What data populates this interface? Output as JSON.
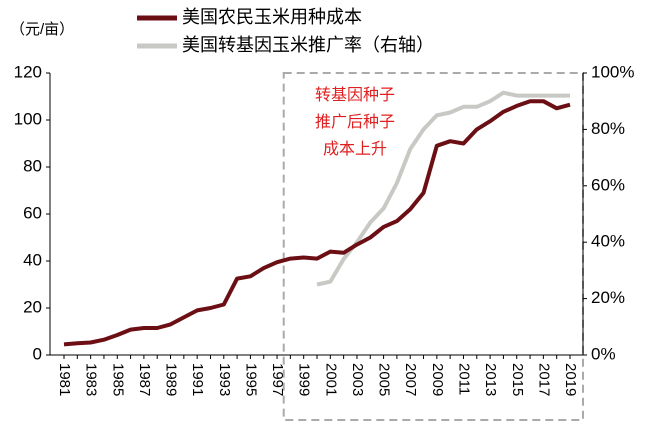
{
  "chart_data": {
    "type": "line",
    "y_label": "（元/亩）",
    "annotation": [
      "转基因种子",
      "推广后种子",
      "成本上升"
    ],
    "categories": [
      "1981",
      null,
      "1983",
      null,
      "1985",
      null,
      "1987",
      null,
      "1989",
      null,
      "1991",
      null,
      "1993",
      null,
      "1995",
      null,
      "1997",
      null,
      "1999",
      null,
      "2001",
      null,
      "2003",
      null,
      "2005",
      null,
      "2007",
      null,
      "2009",
      null,
      "2011",
      null,
      "2013",
      null,
      "2015",
      null,
      "2017",
      null,
      "2019"
    ],
    "series": [
      {
        "name": "美国农民玉米用种成本",
        "color": "#6b0f14",
        "values": [
          4.5,
          5,
          5.3,
          6.5,
          8.5,
          10.8,
          11.5,
          11.5,
          13,
          16,
          19,
          20,
          21.5,
          32.5,
          33.5,
          37,
          39.5,
          41,
          41.5,
          41,
          44,
          43.5,
          47,
          50,
          54.5,
          57,
          62,
          69,
          89,
          91,
          90,
          96,
          99.5,
          103.5,
          106,
          108,
          108,
          105,
          106.5
        ]
      },
      {
        "name": "美国转基因玉米推广率（右轴）",
        "color": "#c8c8c4",
        "axis": "y2",
        "values": [
          null,
          null,
          null,
          null,
          null,
          null,
          null,
          null,
          null,
          null,
          null,
          null,
          null,
          null,
          null,
          null,
          null,
          null,
          null,
          25,
          26,
          34,
          40,
          47,
          52,
          61,
          73,
          80,
          85,
          86,
          88,
          88,
          90,
          93,
          92,
          92,
          92,
          92,
          92
        ]
      }
    ],
    "ylim": [
      0,
      120
    ],
    "yticks": [
      0,
      20,
      40,
      60,
      80,
      100,
      120
    ],
    "y2lim": [
      0,
      100
    ],
    "y2ticks": [
      {
        "value": 0,
        "label": "0%"
      },
      {
        "value": 20,
        "label": "20%"
      },
      {
        "value": 40,
        "label": "40%"
      },
      {
        "value": 60,
        "label": "60%"
      },
      {
        "value": 80,
        "label": "80%"
      },
      {
        "value": 100,
        "label": "100%"
      }
    ]
  }
}
